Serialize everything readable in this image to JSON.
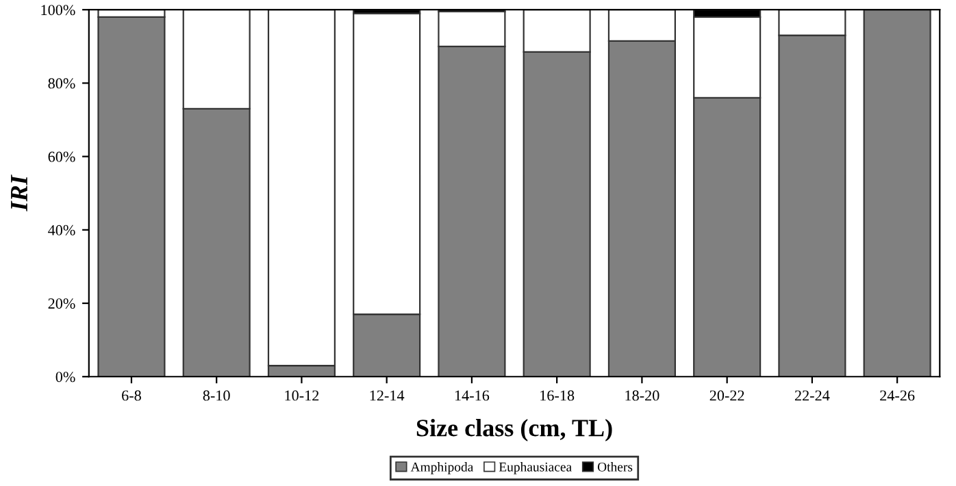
{
  "chart_data": {
    "type": "bar",
    "stacked": true,
    "xlabel": "Size class (cm, TL)",
    "ylabel": "IRI",
    "categories": [
      "6-8",
      "8-10",
      "10-12",
      "12-14",
      "14-16",
      "16-18",
      "18-20",
      "20-22",
      "22-24",
      "24-26"
    ],
    "series": [
      {
        "name": "Amphipoda",
        "color": "#808080",
        "values": [
          98,
          73,
          3,
          17,
          90,
          88.5,
          91.5,
          76,
          93,
          100
        ]
      },
      {
        "name": "Euphausiacea",
        "color": "#ffffff",
        "values": [
          2,
          27,
          97,
          82,
          9.5,
          11.5,
          8.5,
          22,
          7,
          0
        ]
      },
      {
        "name": "Others",
        "color": "#000000",
        "values": [
          0,
          0,
          0,
          1,
          0.5,
          0,
          0,
          2,
          0,
          0
        ]
      }
    ],
    "ylim": [
      0,
      100
    ],
    "yticks": [
      {
        "value": 0,
        "label": "0%"
      },
      {
        "value": 20,
        "label": "20%"
      },
      {
        "value": 40,
        "label": "40%"
      },
      {
        "value": 60,
        "label": "60%"
      },
      {
        "value": 80,
        "label": "80%"
      },
      {
        "value": 100,
        "label": "100%"
      }
    ],
    "legend": "bottom",
    "grid": false
  }
}
